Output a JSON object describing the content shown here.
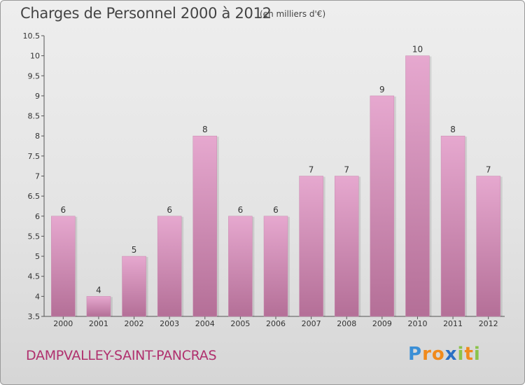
{
  "header": {
    "title": "Charges de Personnel 2000 à 2012",
    "subtitle": "(en milliers d'€)"
  },
  "footer": {
    "commune": "DAMPVALLEY-SAINT-PANCRAS",
    "logo_letters": [
      "P",
      "r",
      "o",
      "x",
      "i",
      "t",
      "i"
    ],
    "logo_colors": [
      "#3a8fd6",
      "#f08a1c",
      "#f08a1c",
      "#2a6fc4",
      "#8bc34a",
      "#f08a1c",
      "#8bc34a"
    ]
  },
  "colors": {
    "bar_top": "#e6a8cf",
    "bar_bottom": "#b46f97",
    "label": "#333333"
  },
  "chart_data": {
    "type": "bar",
    "title": "Charges de Personnel 2000 à 2012",
    "subtitle": "(en milliers d'€)",
    "categories": [
      "2000",
      "2001",
      "2002",
      "2003",
      "2004",
      "2005",
      "2006",
      "2007",
      "2008",
      "2009",
      "2010",
      "2011",
      "2012"
    ],
    "values": [
      6,
      4,
      5,
      6,
      8,
      6,
      6,
      7,
      7,
      9,
      10,
      8,
      7
    ],
    "ylim": [
      3.5,
      10.5
    ],
    "yticks": [
      "3.5",
      "4",
      "4.5",
      "5",
      "5.5",
      "6",
      "6.5",
      "7",
      "7.5",
      "8",
      "8.5",
      "9",
      "9.5",
      "10",
      "10.5"
    ],
    "grid": false,
    "legend": "none"
  }
}
